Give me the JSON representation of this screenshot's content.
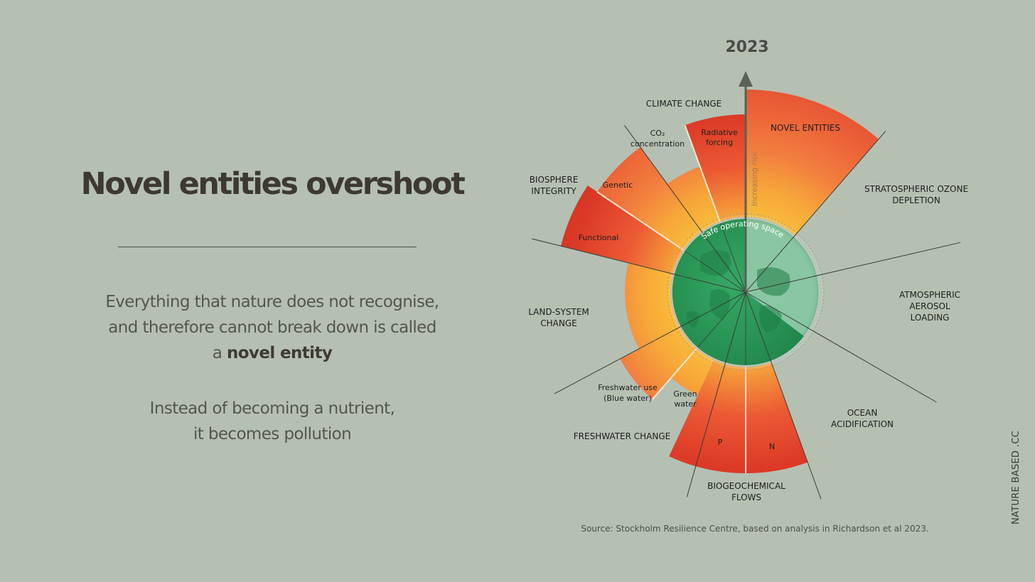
{
  "heading": "Novel entities overshoot",
  "paragraphs": {
    "p1_line1": "Everything that nature does not recognise,",
    "p1_line2": "and therefore cannot break down is called",
    "p1_line3_prefix": "a ",
    "p1_line3_bold": "novel entity",
    "p2_line1": "Instead of becoming a nutrient,",
    "p2_line2": "it becomes pollution"
  },
  "diagram": {
    "year": "2023",
    "risk_axis_label": "Increasing risk",
    "safe_space_label": "Safe operating space",
    "boundaries": {
      "climate_change": "CLIMATE CHANGE",
      "novel_entities": "NOVEL ENTITIES",
      "ozone_line1": "STRATOSPHERIC OZONE",
      "ozone_line2": "DEPLETION",
      "aerosol_line1": "ATMOSPHERIC",
      "aerosol_line2": "AEROSOL",
      "aerosol_line3": "LOADING",
      "ocean_line1": "OCEAN",
      "ocean_line2": "ACIDIFICATION",
      "biogeo_line1": "BIOGEOCHEMICAL",
      "biogeo_line2": "FLOWS",
      "freshwater": "FRESHWATER CHANGE",
      "land_line1": "LAND-SYSTEM",
      "land_line2": "CHANGE",
      "biosphere_line1": "BIOSPHERE",
      "biosphere_line2": "INTEGRITY"
    },
    "sub_labels": {
      "co2_line1": "CO₂",
      "co2_line2": "concentration",
      "radiative_line1": "Radiative",
      "radiative_line2": "forcing",
      "genetic": "Genetic",
      "functional": "Functional",
      "blue_line1": "Freshwater use",
      "blue_line2": "(Blue water)",
      "green_line1": "Green",
      "green_line2": "water",
      "phosphorus": "P",
      "nitrogen": "N"
    },
    "colors": {
      "safe": "#2e9d5b",
      "boundary_zone": "#f6b53a",
      "increasing_risk": "#f07a3c",
      "high_risk": "#dc3b27"
    }
  },
  "source": "Source: Stockholm Resilience Centre, based on analysis in Richardson et al 2023.",
  "brand": "NATURE BASED .CC"
}
